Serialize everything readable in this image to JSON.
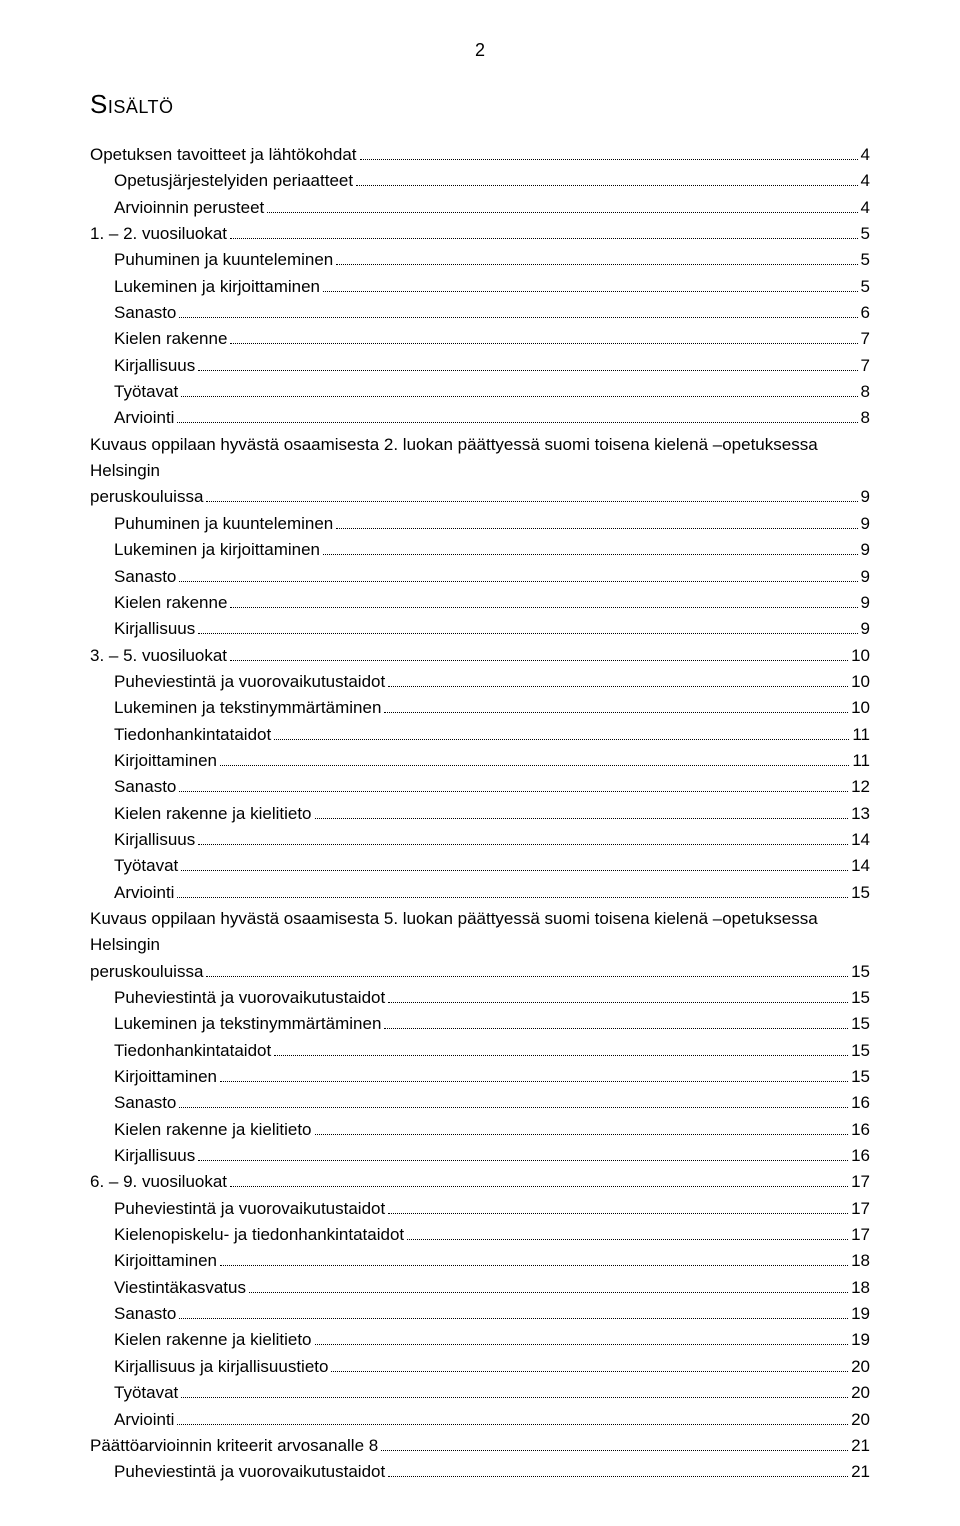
{
  "pageNumber": "2",
  "heading": "Sisältö",
  "fontSizes": {
    "body": 17,
    "heading": 26,
    "pageNumber": 18
  },
  "colors": {
    "text": "#000000",
    "background": "#ffffff"
  },
  "toc": [
    {
      "label": "Opetuksen tavoitteet ja lähtökohdat",
      "page": "4",
      "indent": 0
    },
    {
      "label": "Opetusjärjestelyiden periaatteet",
      "page": "4",
      "indent": 1
    },
    {
      "label": "Arvioinnin perusteet",
      "page": "4",
      "indent": 1
    },
    {
      "label": "1. – 2. vuosiluokat",
      "page": "5",
      "indent": 0
    },
    {
      "label": "Puhuminen ja kuunteleminen",
      "page": "5",
      "indent": 1
    },
    {
      "label": "Lukeminen ja kirjoittaminen",
      "page": "5",
      "indent": 1
    },
    {
      "label": "Sanasto",
      "page": "6",
      "indent": 1
    },
    {
      "label": "Kielen rakenne",
      "page": "7",
      "indent": 1
    },
    {
      "label": "Kirjallisuus",
      "page": "7",
      "indent": 1
    },
    {
      "label": "Työtavat",
      "page": "8",
      "indent": 1
    },
    {
      "label": "Arviointi",
      "page": "8",
      "indent": 1
    },
    {
      "firstLine": "Kuvaus oppilaan hyvästä osaamisesta 2. luokan päättyessä suomi toisena kielenä –opetuksessa Helsingin",
      "label": "peruskouluissa",
      "page": "9",
      "indent": 0,
      "multi": true
    },
    {
      "label": "Puhuminen ja kuunteleminen",
      "page": "9",
      "indent": 1
    },
    {
      "label": "Lukeminen ja kirjoittaminen",
      "page": "9",
      "indent": 1
    },
    {
      "label": "Sanasto",
      "page": "9",
      "indent": 1
    },
    {
      "label": "Kielen rakenne",
      "page": "9",
      "indent": 1
    },
    {
      "label": "Kirjallisuus",
      "page": "9",
      "indent": 1
    },
    {
      "label": "3. – 5. vuosiluokat",
      "page": "10",
      "indent": 0
    },
    {
      "label": "Puheviestintä ja vuorovaikutustaidot",
      "page": "10",
      "indent": 1
    },
    {
      "label": "Lukeminen ja tekstinymmärtäminen",
      "page": "10",
      "indent": 1
    },
    {
      "label": "Tiedonhankintataidot",
      "page": "11",
      "indent": 1
    },
    {
      "label": "Kirjoittaminen",
      "page": "11",
      "indent": 1
    },
    {
      "label": "Sanasto",
      "page": "12",
      "indent": 1
    },
    {
      "label": "Kielen rakenne ja kielitieto",
      "page": "13",
      "indent": 1
    },
    {
      "label": "Kirjallisuus",
      "page": "14",
      "indent": 1
    },
    {
      "label": "Työtavat",
      "page": "14",
      "indent": 1
    },
    {
      "label": "Arviointi",
      "page": "15",
      "indent": 1
    },
    {
      "firstLine": "Kuvaus oppilaan hyvästä osaamisesta 5. luokan päättyessä suomi toisena kielenä –opetuksessa Helsingin",
      "label": "peruskouluissa",
      "page": "15",
      "indent": 0,
      "multi": true
    },
    {
      "label": "Puheviestintä ja vuorovaikutustaidot",
      "page": "15",
      "indent": 1
    },
    {
      "label": "Lukeminen ja tekstinymmärtäminen",
      "page": "15",
      "indent": 1
    },
    {
      "label": "Tiedonhankintataidot",
      "page": "15",
      "indent": 1
    },
    {
      "label": "Kirjoittaminen",
      "page": "15",
      "indent": 1
    },
    {
      "label": "Sanasto",
      "page": "16",
      "indent": 1
    },
    {
      "label": "Kielen rakenne ja kielitieto",
      "page": "16",
      "indent": 1
    },
    {
      "label": "Kirjallisuus",
      "page": "16",
      "indent": 1
    },
    {
      "label": "6. – 9. vuosiluokat",
      "page": "17",
      "indent": 0
    },
    {
      "label": "Puheviestintä ja vuorovaikutustaidot",
      "page": "17",
      "indent": 1
    },
    {
      "label": "Kielenopiskelu- ja tiedonhankintataidot",
      "page": "17",
      "indent": 1
    },
    {
      "label": "Kirjoittaminen",
      "page": "18",
      "indent": 1
    },
    {
      "label": "Viestintäkasvatus",
      "page": "18",
      "indent": 1
    },
    {
      "label": "Sanasto",
      "page": "19",
      "indent": 1
    },
    {
      "label": "Kielen rakenne ja kielitieto",
      "page": "19",
      "indent": 1
    },
    {
      "label": "Kirjallisuus ja kirjallisuustieto",
      "page": "20",
      "indent": 1
    },
    {
      "label": "Työtavat",
      "page": "20",
      "indent": 1
    },
    {
      "label": "Arviointi",
      "page": "20",
      "indent": 1
    },
    {
      "label": "Päättöarvioinnin kriteerit arvosanalle 8",
      "page": "21",
      "indent": 0
    },
    {
      "label": "Puheviestintä ja vuorovaikutustaidot",
      "page": "21",
      "indent": 1
    }
  ]
}
